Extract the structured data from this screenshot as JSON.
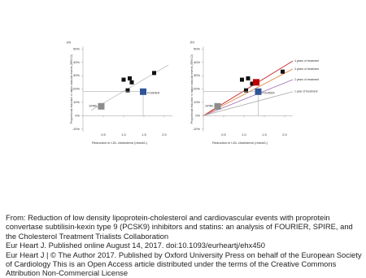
{
  "chart_data": [
    {
      "type": "scatter",
      "title": "(a)",
      "xlabel": "Reduction in LDL cholesterol (mmol/L)",
      "ylabel": "Proportional reduction in major vascular events (95% CI)",
      "xlim": [
        0,
        2.2
      ],
      "ylim": [
        -12,
        52
      ],
      "xticks": [
        0.5,
        {
          "value": 1,
          "label": "1.0"
        },
        1.5,
        {
          "value": 2,
          "label": "2.0"
        }
      ],
      "yticks": [
        {
          "value": 50,
          "label": "50%"
        },
        {
          "value": 40,
          "label": "40%"
        },
        {
          "value": 30,
          "label": "30%"
        },
        {
          "value": 20,
          "label": "20%"
        },
        {
          "value": 10,
          "label": "10%"
        },
        {
          "value": 0,
          "label": "0%"
        },
        {
          "value": -10,
          "label": "-10%"
        }
      ],
      "x": [
        0.45,
        1.0,
        1.15,
        1.2,
        1.1,
        1.75,
        1.48
      ],
      "values": [
        7,
        27,
        28,
        25,
        19,
        32,
        18
      ],
      "colors": [
        "#8c8c8c",
        "#111111",
        "#111111",
        "#111111",
        "#111111",
        "#111111",
        "#2f5597"
      ],
      "point_labels": [
        "SPIRE",
        null,
        null,
        null,
        null,
        null,
        "FOURIER"
      ],
      "lines": [
        {
          "color": "#bdbdbd",
          "x": [
            0.2,
            2.1
          ],
          "values": [
            4,
            38
          ]
        }
      ]
    },
    {
      "type": "scatter",
      "title": "(b)",
      "xlabel": "Reduction in LDL cholesterol (mmol/L)",
      "ylabel": "Proportional reduction in major vascular events (95% CI)",
      "xlim": [
        0,
        2.2
      ],
      "ylim": [
        -12,
        52
      ],
      "xticks": [
        0.5,
        {
          "value": 1,
          "label": "1.0"
        },
        1.5,
        {
          "value": 2,
          "label": "2.0"
        }
      ],
      "yticks": [
        {
          "value": 50,
          "label": "50%"
        },
        {
          "value": 40,
          "label": "40%"
        },
        {
          "value": 30,
          "label": "30%"
        },
        {
          "value": 20,
          "label": "20%"
        },
        {
          "value": 10,
          "label": "10%"
        },
        {
          "value": 0,
          "label": "0%"
        },
        {
          "value": -10,
          "label": "-10%"
        }
      ],
      "x": [
        0.35,
        0.95,
        1.1,
        1.2,
        1.05,
        1.95,
        1.3,
        1.35
      ],
      "values": [
        7,
        27,
        28,
        24,
        19,
        33,
        25,
        18
      ],
      "colors": [
        "#8c8c8c",
        "#111111",
        "#111111",
        "#111111",
        "#111111",
        "#111111",
        "#c00000",
        "#2f5597"
      ],
      "point_labels": [
        "SPIRE",
        null,
        null,
        null,
        null,
        null,
        null,
        "FOURIER"
      ],
      "lines": [
        {
          "name": "4 years of treatment",
          "color": "#c00000",
          "x": [
            0,
            2.2
          ],
          "values": [
            0,
            41
          ]
        },
        {
          "name": "3 years of treatment",
          "color": "#e07b39",
          "x": [
            0,
            2.2
          ],
          "values": [
            0,
            35
          ]
        },
        {
          "name": "2 years of treatment",
          "color": "#9e6bb0",
          "x": [
            0,
            2.2
          ],
          "values": [
            0,
            27
          ]
        },
        {
          "name": "1 year of treatment",
          "color": "#a6a6a6",
          "x": [
            0,
            2.2
          ],
          "values": [
            0,
            18
          ]
        }
      ]
    }
  ],
  "caption": {
    "source": "From: Reduction of low density lipoprotein-cholesterol and cardiovascular events with proprotein convertase subtilisin-kexin type 9 (PCSK9) inhibitors and statins: an analysis of FOURIER, SPIRE, and the Cholesterol Treatment Trialists Collaboration",
    "published": "Eur Heart J. Published online  August 14, 2017. doi:10.1093/eurheartj/ehx450",
    "license": "Eur Heart J | © The Author 2017. Published by Oxford University Press on behalf of the European Society of Cardiology This is an Open Access article distributed under the terms of the Creative Commons Attribution Non-Commercial License"
  }
}
